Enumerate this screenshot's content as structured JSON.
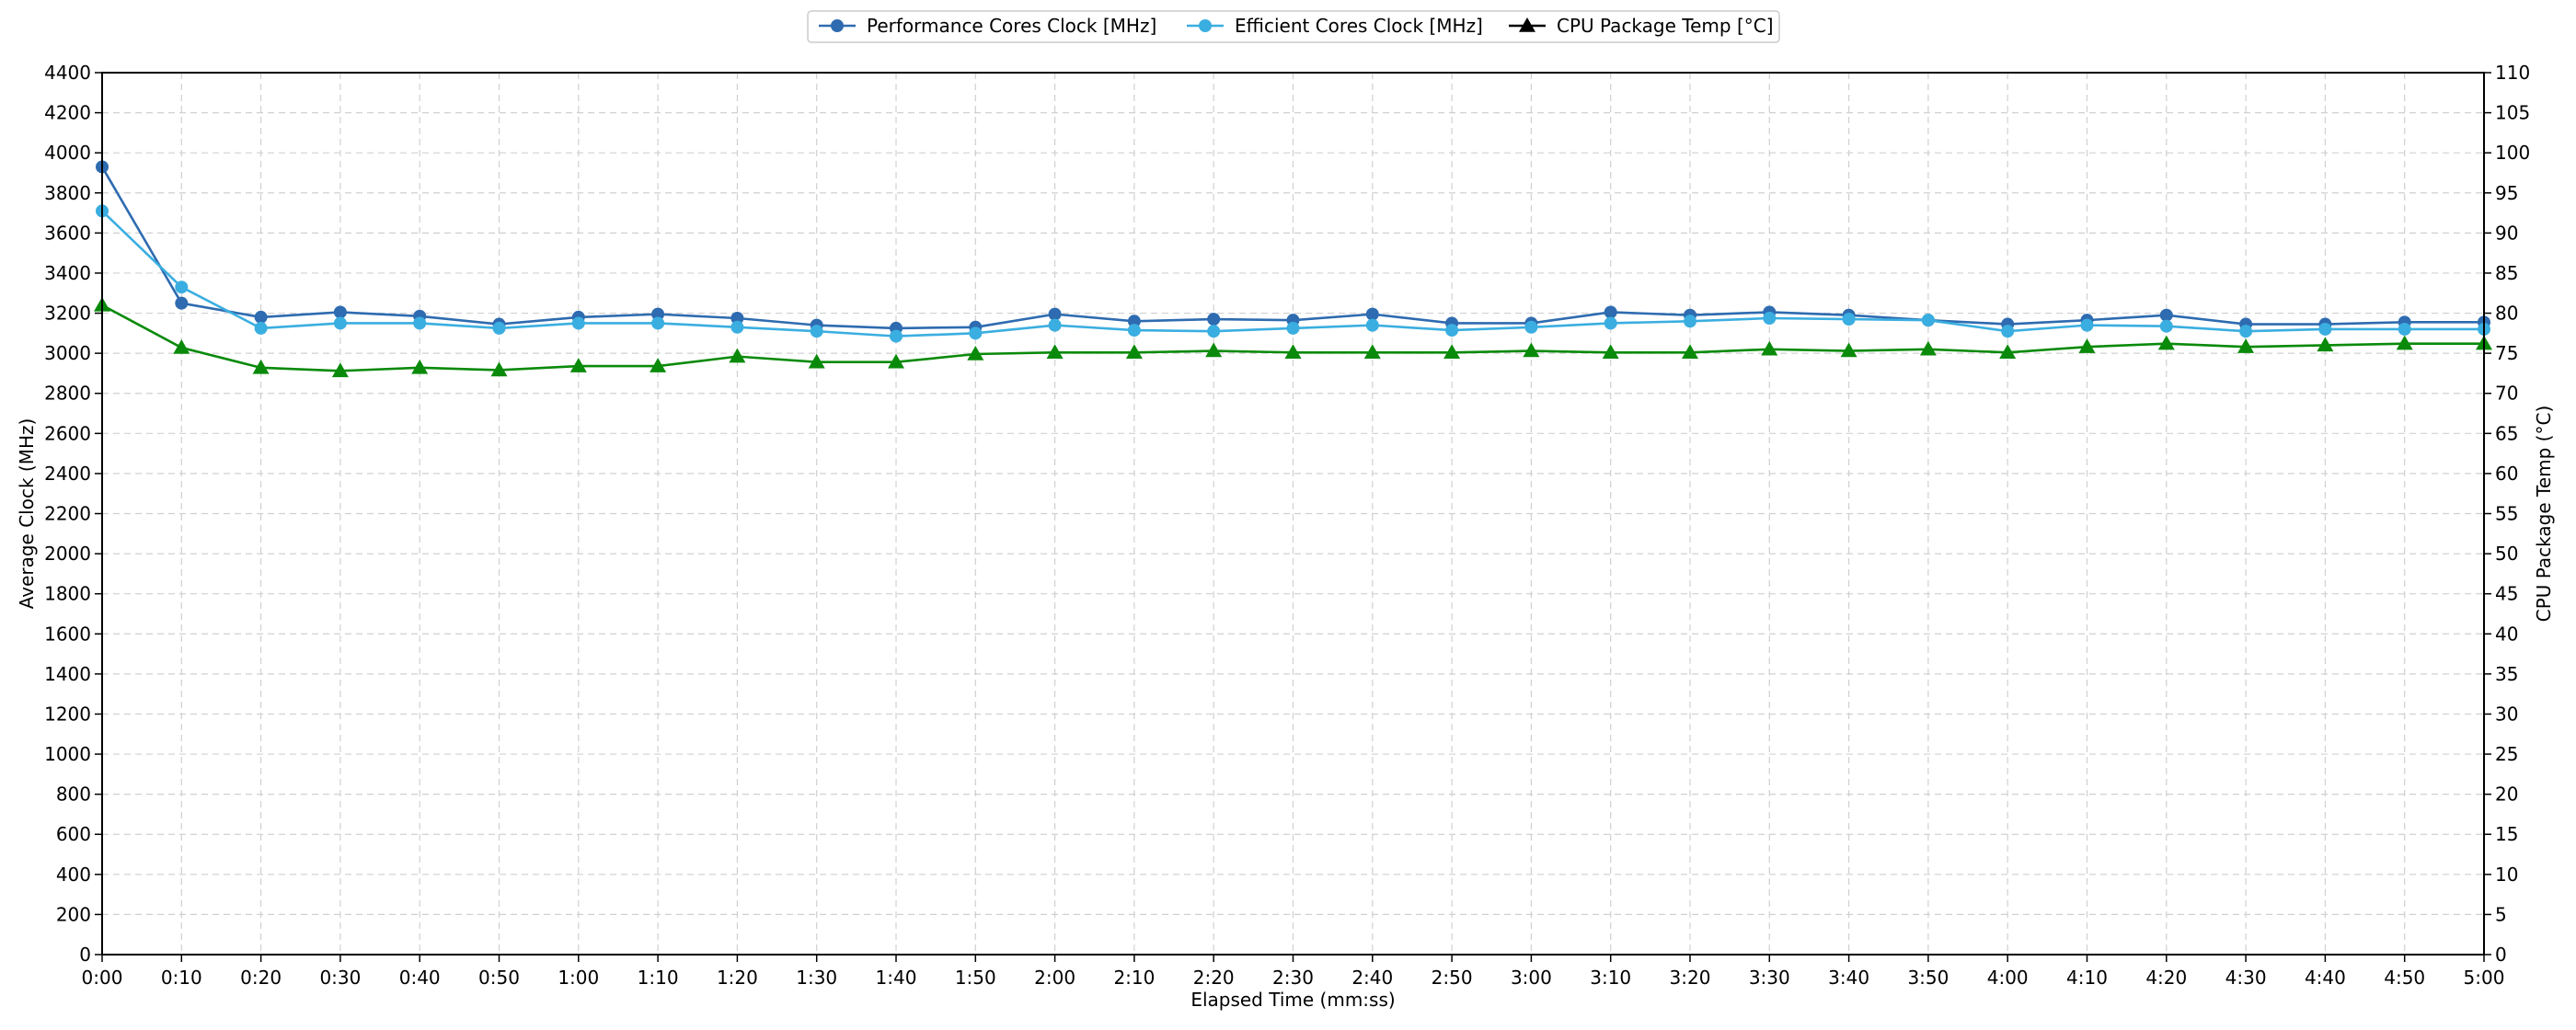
{
  "chart_data": {
    "type": "line",
    "xlabel": "Elapsed Time (mm:ss)",
    "ylabel": "Average Clock (MHz)",
    "y2label": "CPU Package Temp (°C)",
    "x": [
      "0:00",
      "0:10",
      "0:20",
      "0:30",
      "0:40",
      "0:50",
      "1:00",
      "1:10",
      "1:20",
      "1:30",
      "1:40",
      "1:50",
      "2:00",
      "2:10",
      "2:20",
      "2:30",
      "2:40",
      "2:50",
      "3:00",
      "3:10",
      "3:20",
      "3:30",
      "3:40",
      "3:50",
      "4:00",
      "4:10",
      "4:20",
      "4:30",
      "4:40",
      "4:50",
      "5:00"
    ],
    "ylim": [
      0,
      4400
    ],
    "y2lim": [
      0,
      110
    ],
    "yticks": [
      0,
      200,
      400,
      600,
      800,
      1000,
      1200,
      1400,
      1600,
      1800,
      2000,
      2200,
      2400,
      2600,
      2800,
      3000,
      3200,
      3400,
      3600,
      3800,
      4000,
      4200,
      4400
    ],
    "y2ticks": [
      0,
      5,
      10,
      15,
      20,
      25,
      30,
      35,
      40,
      45,
      50,
      55,
      60,
      65,
      70,
      75,
      80,
      85,
      90,
      95,
      100,
      105,
      110
    ],
    "grid": true,
    "legend_position": "top-center",
    "series": [
      {
        "name": "Performance Cores Clock [MHz]",
        "axis": "left",
        "color": "#2e6bb0",
        "marker": "circle",
        "values": [
          3930,
          3250,
          3180,
          3205,
          3185,
          3145,
          3180,
          3195,
          3175,
          3140,
          3125,
          3130,
          3195,
          3160,
          3170,
          3165,
          3195,
          3150,
          3150,
          3205,
          3190,
          3205,
          3190,
          3165,
          3145,
          3165,
          3190,
          3145,
          3145,
          3155,
          3155
        ]
      },
      {
        "name": "Efficient Cores Clock [MHz]",
        "axis": "left",
        "color": "#3aaee0",
        "marker": "circle",
        "values": [
          3710,
          3330,
          3125,
          3150,
          3150,
          3125,
          3150,
          3150,
          3130,
          3110,
          3085,
          3100,
          3140,
          3115,
          3110,
          3125,
          3140,
          3115,
          3130,
          3150,
          3160,
          3175,
          3170,
          3165,
          3110,
          3140,
          3135,
          3110,
          3120,
          3120,
          3120
        ]
      },
      {
        "name": "CPU Package Temp [°C]",
        "axis": "right",
        "color": "#0a8a0a",
        "marker": "triangle",
        "values": [
          81,
          75.7,
          73.2,
          72.8,
          73.2,
          72.9,
          73.4,
          73.4,
          74.6,
          73.9,
          73.9,
          74.9,
          75.1,
          75.1,
          75.3,
          75.1,
          75.1,
          75.1,
          75.3,
          75.1,
          75.1,
          75.5,
          75.3,
          75.5,
          75.1,
          75.8,
          76.2,
          75.8,
          76,
          76.2,
          76.2
        ]
      }
    ]
  }
}
